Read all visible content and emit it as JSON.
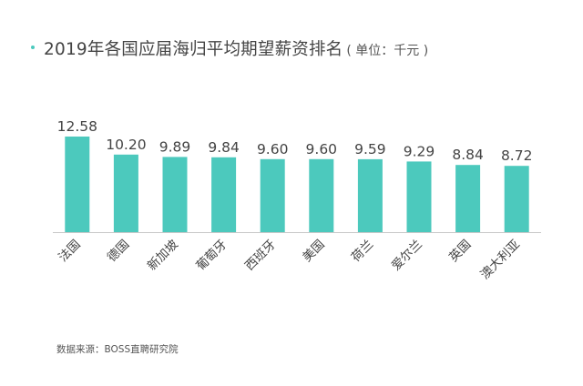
{
  "title": "2019年各国应届海归平均期望薪资排名",
  "unit_note": "( 单位：千元 )",
  "source": "数据来源：BOSS直聘研究院",
  "watermark": "BOSS直聘研究院",
  "colors": {
    "bar": "#4cc9bd",
    "title_dot": "#4cc9bd",
    "text": "#444444",
    "axis": "#c8c8c8"
  },
  "chart_data": {
    "type": "bar",
    "title": "2019年各国应届海归平均期望薪资排名",
    "xlabel": "",
    "ylabel": "",
    "ylim": [
      0,
      13
    ],
    "grid": false,
    "categories": [
      "法国",
      "德国",
      "新加坡",
      "葡萄牙",
      "西班牙",
      "美国",
      "荷兰",
      "爱尔兰",
      "英国",
      "澳大利亚"
    ],
    "values": [
      12.58,
      10.2,
      9.89,
      9.84,
      9.6,
      9.6,
      9.59,
      9.29,
      8.84,
      8.72
    ],
    "value_labels": [
      "12.58",
      "10.20",
      "9.89",
      "9.84",
      "9.60",
      "9.60",
      "9.59",
      "9.29",
      "8.84",
      "8.72"
    ]
  }
}
